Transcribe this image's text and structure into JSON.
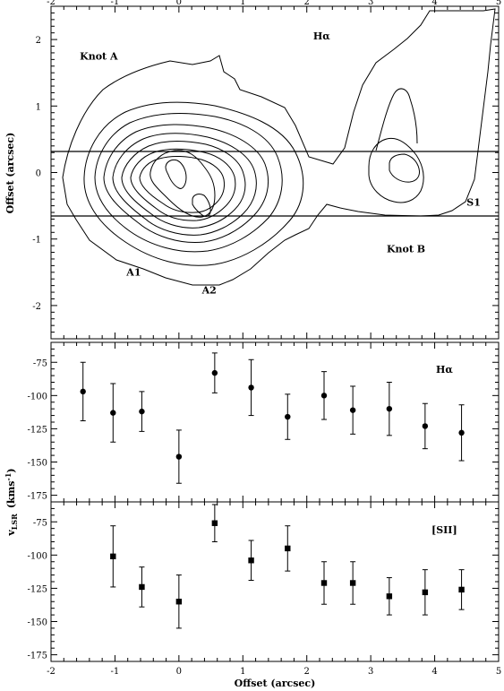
{
  "chart_data": [
    {
      "type": "contour",
      "x_ticks": [
        "-2",
        "-1",
        "0",
        "1",
        "2",
        "3",
        "4",
        "5"
      ],
      "y_ticks": [
        "2",
        "1",
        "0",
        "-1",
        "-2"
      ],
      "ylabel": "Offset (arcsec)",
      "xlim": [
        -2,
        5
      ],
      "ylim": [
        -2.5,
        2.5
      ],
      "annotations": [
        {
          "text": "Hα",
          "x": 2.1,
          "y": 2.0
        },
        {
          "text": "Knot A",
          "x": -1.55,
          "y": 1.7
        },
        {
          "text": "Knot B",
          "x": 3.25,
          "y": -1.2
        },
        {
          "text": "A1",
          "x": -0.82,
          "y": -1.55
        },
        {
          "text": "A2",
          "x": 0.36,
          "y": -1.82
        },
        {
          "text": "S1",
          "x": 4.5,
          "y": -0.5
        }
      ],
      "slit_lines_y": [
        0.4,
        -0.6
      ]
    },
    {
      "type": "scatter",
      "series_label": "Hα",
      "marker": "circle",
      "x": [
        -1.5,
        -1.03,
        -0.58,
        0.0,
        0.56,
        1.13,
        1.7,
        2.27,
        2.72,
        3.29,
        3.85,
        4.42
      ],
      "y": [
        -97,
        -113,
        -112,
        -146,
        -83,
        -94,
        -116,
        -100,
        -111,
        -110,
        -123,
        -128
      ],
      "yerr": [
        22,
        22,
        15,
        20,
        15,
        21,
        17,
        18,
        18,
        20,
        17,
        21
      ],
      "y_ticks": [
        "-75",
        "-100",
        "-125",
        "-150",
        "-175"
      ],
      "xlim": [
        -2,
        5
      ],
      "ylim": [
        -180,
        -60
      ]
    },
    {
      "type": "scatter",
      "series_label": "[SII]",
      "marker": "square",
      "x": [
        -1.03,
        -0.58,
        0.0,
        0.56,
        1.13,
        1.7,
        2.27,
        2.72,
        3.29,
        3.85,
        4.42
      ],
      "y": [
        -101,
        -124,
        -135,
        -76,
        -104,
        -95,
        -121,
        -121,
        -131,
        -128,
        -126
      ],
      "yerr": [
        23,
        15,
        20,
        14,
        15,
        17,
        16,
        16,
        14,
        17,
        15
      ],
      "y_ticks": [
        "-75",
        "-100",
        "-125",
        "-150",
        "-175"
      ],
      "x_ticks": [
        "-2",
        "-1",
        "0",
        "1",
        "2",
        "3",
        "4",
        "5"
      ],
      "xlabel": "Offset (arcsec)",
      "xlim": [
        -2,
        5
      ],
      "ylim": [
        -180,
        -60
      ]
    }
  ],
  "shared_ylabel": {
    "main": "v",
    "sub": "LSR",
    "unit": "(kms",
    "sup": "-1",
    "close": ")"
  }
}
